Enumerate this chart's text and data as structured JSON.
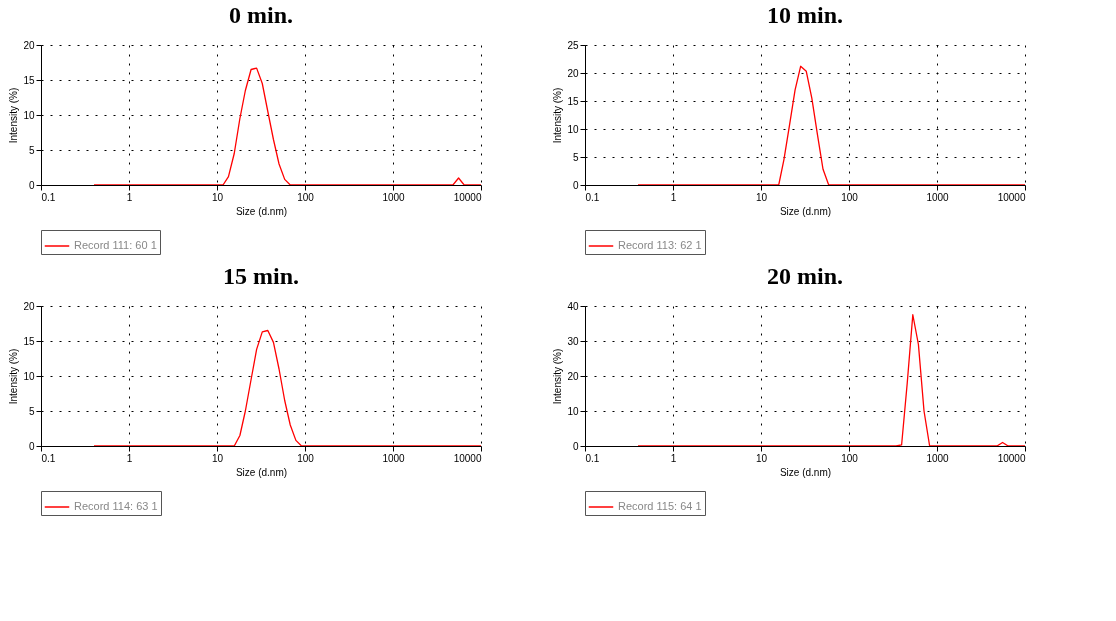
{
  "chart_data": [
    {
      "type": "line",
      "title": "0 min.",
      "xlabel": "Size (d.nm)",
      "ylabel": "Intensity (%)",
      "log": "x",
      "grid": true,
      "legend": "bottom",
      "line_style": "solid",
      "marker": "none",
      "xlim": [
        0.1,
        10000
      ],
      "xticks": [
        0.1,
        1,
        10,
        100,
        1000,
        10000
      ],
      "ylim": [
        0,
        20
      ],
      "yticks": [
        0,
        5,
        10,
        15,
        20
      ],
      "series": [
        {
          "name": "Record 111: 60 1",
          "color": "#ff0000",
          "x": [
            0.4,
            11.7,
            13.5,
            15.7,
            18.2,
            21,
            24.4,
            28.2,
            32.7,
            37.8,
            43.8,
            50.7,
            58.8,
            68,
            4800,
            5560,
            6440,
            10000
          ],
          "values": [
            0,
            0,
            1.2,
            4.5,
            9.5,
            13.5,
            16.5,
            16.7,
            14.5,
            10.5,
            6.5,
            3,
            0.8,
            0,
            0,
            1,
            0,
            0
          ]
        }
      ]
    },
    {
      "type": "line",
      "title": "10 min.",
      "xlabel": "Size (d.nm)",
      "ylabel": "Intensity (%)",
      "log": "x",
      "grid": true,
      "legend": "bottom",
      "line_style": "solid",
      "marker": "none",
      "xlim": [
        0.1,
        10000
      ],
      "xticks": [
        0.1,
        1,
        10,
        100,
        1000,
        10000
      ],
      "ylim": [
        0,
        25
      ],
      "yticks": [
        0,
        5,
        10,
        15,
        20,
        25
      ],
      "series": [
        {
          "name": "Record 113: 62 1",
          "color": "#ff0000",
          "x": [
            0.4,
            15.9,
            18.2,
            21,
            24.4,
            28.2,
            32.7,
            37.8,
            43.8,
            50.7,
            58.8,
            10000
          ],
          "values": [
            0,
            0,
            4.5,
            10.5,
            17,
            21.2,
            20.3,
            15.5,
            9,
            2.8,
            0,
            0
          ]
        }
      ]
    },
    {
      "type": "line",
      "title": "15 min.",
      "xlabel": "Size (d.nm)",
      "ylabel": "Intensity (%)",
      "log": "x",
      "grid": true,
      "legend": "bottom",
      "line_style": "solid",
      "marker": "none",
      "xlim": [
        0.1,
        10000
      ],
      "xticks": [
        0.1,
        1,
        10,
        100,
        1000,
        10000
      ],
      "ylim": [
        0,
        20
      ],
      "yticks": [
        0,
        5,
        10,
        15,
        20
      ],
      "series": [
        {
          "name": "Record 114: 63 1",
          "color": "#ff0000",
          "x": [
            0.4,
            15.7,
            18.2,
            21,
            24.4,
            28.2,
            32.7,
            37.8,
            43.8,
            50.7,
            58.8,
            68,
            78.8,
            91.3,
            10000
          ],
          "values": [
            0,
            0,
            1.5,
            5,
            9.5,
            13.8,
            16.3,
            16.5,
            14.8,
            11,
            6.5,
            3,
            0.8,
            0,
            0
          ]
        }
      ]
    },
    {
      "type": "line",
      "title": "20 min.",
      "xlabel": "Size (d.nm)",
      "ylabel": "Intensity (%)",
      "log": "x",
      "grid": true,
      "legend": "bottom",
      "line_style": "solid",
      "marker": "none",
      "xlim": [
        0.1,
        10000
      ],
      "xticks": [
        0.1,
        1,
        10,
        100,
        1000,
        10000
      ],
      "ylim": [
        0,
        40
      ],
      "yticks": [
        0,
        10,
        20,
        30,
        40
      ],
      "series": [
        {
          "name": "Record 115: 64 1",
          "color": "#ff0000",
          "x": [
            0.4,
            342,
            396,
            459,
            531,
            615,
            712,
            825,
            4800,
            5560,
            6440,
            10000
          ],
          "values": [
            0,
            0,
            0.3,
            18,
            37.5,
            29,
            10,
            0,
            0,
            1,
            0,
            0
          ]
        }
      ]
    }
  ]
}
